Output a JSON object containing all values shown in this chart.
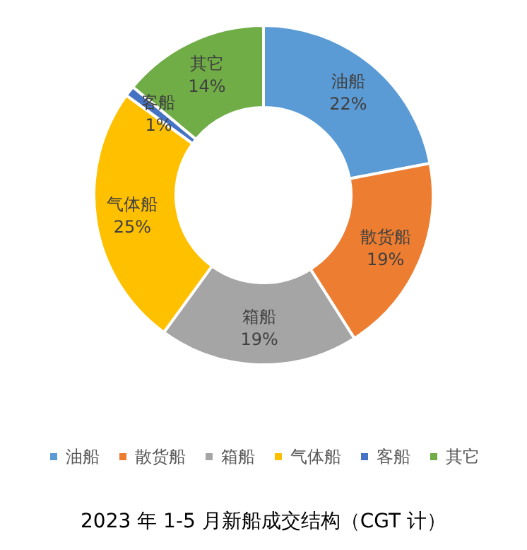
{
  "chart_data": {
    "type": "donut",
    "title": "2023 年 1-5 月新船成交结构（CGT 计）",
    "categories": [
      "油船",
      "散货船",
      "箱船",
      "气体船",
      "客船",
      "其它"
    ],
    "values": [
      22,
      19,
      19,
      25,
      1,
      14
    ],
    "value_labels": [
      "22%",
      "19%",
      "19%",
      "25%",
      "1%",
      "14%"
    ],
    "colors": [
      "#5b9bd5",
      "#ed7d31",
      "#a5a5a5",
      "#ffc000",
      "#4472c4",
      "#70ad47"
    ],
    "legend": "bottom"
  }
}
